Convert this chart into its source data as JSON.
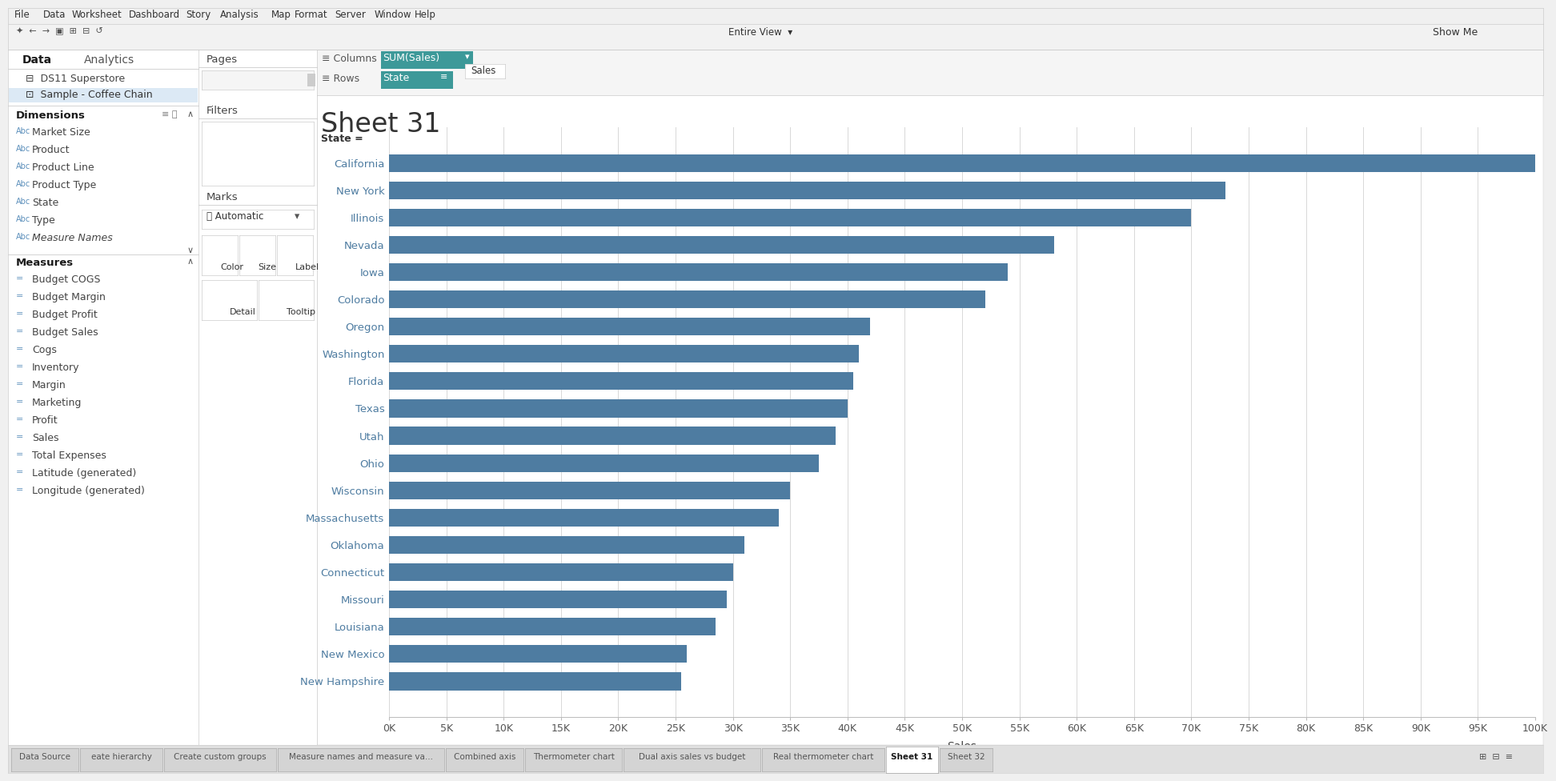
{
  "title": "Sheet 31",
  "states": [
    "California",
    "New York",
    "Illinois",
    "Nevada",
    "Iowa",
    "Colorado",
    "Oregon",
    "Washington",
    "Florida",
    "Texas",
    "Utah",
    "Ohio",
    "Wisconsin",
    "Massachusetts",
    "Oklahoma",
    "Connecticut",
    "Missouri",
    "Louisiana",
    "New Mexico",
    "New Hampshire"
  ],
  "sales": [
    100000,
    73000,
    70000,
    58000,
    54000,
    52000,
    42000,
    41000,
    40500,
    40000,
    39000,
    37500,
    35000,
    34000,
    31000,
    30000,
    29500,
    28500,
    26000,
    25500
  ],
  "bar_color": "#4e7ca1",
  "fig_bg": "#f0f0f0",
  "white": "#ffffff",
  "panel_bg": "#f5f5f5",
  "menu_bg": "#f0f0f0",
  "toolbar_bg": "#f0f0f0",
  "highlight_bg": "#dce8f0",
  "teal_pill": "#3d9999",
  "chart_bg": "#ffffff",
  "state_label_color": "#4e7ca1",
  "grid_color": "#d8d8d8",
  "border_color": "#cccccc",
  "text_dark": "#2d2d2d",
  "text_mid": "#555555",
  "text_light": "#888888",
  "xlabel": "Sales",
  "xlim_max": 100000,
  "xtick_labels": [
    "0K",
    "5K",
    "10K",
    "15K",
    "20K",
    "25K",
    "30K",
    "35K",
    "40K",
    "45K",
    "50K",
    "55K",
    "60K",
    "65K",
    "70K",
    "75K",
    "80K",
    "85K",
    "90K",
    "95K",
    "100K"
  ],
  "xtick_values": [
    0,
    5000,
    10000,
    15000,
    20000,
    25000,
    30000,
    35000,
    40000,
    45000,
    50000,
    55000,
    60000,
    65000,
    70000,
    75000,
    80000,
    85000,
    90000,
    95000,
    100000
  ],
  "title_fontsize": 24,
  "bar_height": 0.65,
  "fig_width": 19.18,
  "fig_height": 9.56
}
